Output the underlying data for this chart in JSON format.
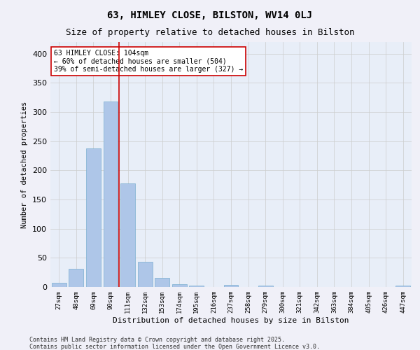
{
  "title1": "63, HIMLEY CLOSE, BILSTON, WV14 0LJ",
  "title2": "Size of property relative to detached houses in Bilston",
  "xlabel": "Distribution of detached houses by size in Bilston",
  "ylabel": "Number of detached properties",
  "categories": [
    "27sqm",
    "48sqm",
    "69sqm",
    "90sqm",
    "111sqm",
    "132sqm",
    "153sqm",
    "174sqm",
    "195sqm",
    "216sqm",
    "237sqm",
    "258sqm",
    "279sqm",
    "300sqm",
    "321sqm",
    "342sqm",
    "363sqm",
    "384sqm",
    "405sqm",
    "426sqm",
    "447sqm"
  ],
  "values": [
    7,
    31,
    238,
    318,
    178,
    43,
    16,
    5,
    3,
    0,
    4,
    0,
    2,
    0,
    0,
    0,
    0,
    0,
    0,
    0,
    2
  ],
  "bar_color": "#aec6e8",
  "bar_edge_color": "#7aaed0",
  "vline_x": 3.5,
  "vline_color": "#cc0000",
  "annotation_text": "63 HIMLEY CLOSE: 104sqm\n← 60% of detached houses are smaller (504)\n39% of semi-detached houses are larger (327) →",
  "annotation_box_color": "#ffffff",
  "annotation_box_edge": "#cc0000",
  "grid_color": "#cccccc",
  "bg_color": "#e8eef8",
  "footer1": "Contains HM Land Registry data © Crown copyright and database right 2025.",
  "footer2": "Contains public sector information licensed under the Open Government Licence v3.0.",
  "ylim": [
    0,
    420
  ],
  "yticks": [
    0,
    50,
    100,
    150,
    200,
    250,
    300,
    350,
    400
  ]
}
